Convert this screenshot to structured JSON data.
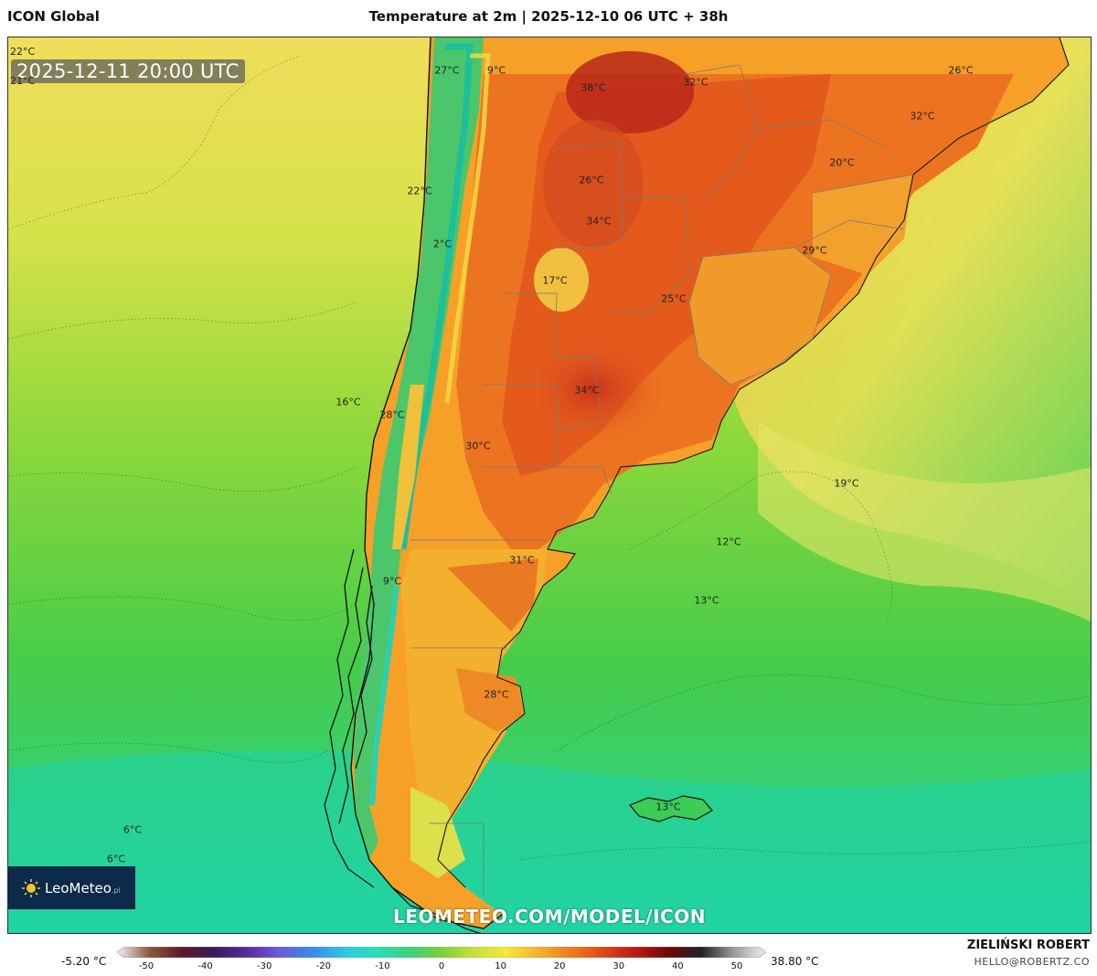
{
  "header": {
    "model": "ICON Global",
    "title": "Temperature at 2m | 2025-12-10 06 UTC + 38h"
  },
  "map": {
    "timestamp": "2025-12-11 20:00 UTC",
    "corner_labels": [
      "22°C",
      "21°C"
    ],
    "labels": [
      {
        "text": "27°C"
      },
      {
        "text": "9°C"
      },
      {
        "text": "38°C"
      },
      {
        "text": "32°C"
      },
      {
        "text": "26°C"
      },
      {
        "text": "32°C"
      },
      {
        "text": "26°C"
      },
      {
        "text": "20°C"
      },
      {
        "text": "22°C"
      },
      {
        "text": "34°C"
      },
      {
        "text": "2°C"
      },
      {
        "text": "29°C"
      },
      {
        "text": "17°C"
      },
      {
        "text": "25°C"
      },
      {
        "text": "16°C"
      },
      {
        "text": "34°C"
      },
      {
        "text": "28°C"
      },
      {
        "text": "30°C"
      },
      {
        "text": "19°C"
      },
      {
        "text": "12°C"
      },
      {
        "text": "31°C"
      },
      {
        "text": "9°C"
      },
      {
        "text": "13°C"
      },
      {
        "text": "28°C"
      },
      {
        "text": "13°C"
      },
      {
        "text": "6°C"
      },
      {
        "text": "6°C"
      }
    ],
    "watermark": "LEOMETEO.COM/MODEL/ICON",
    "logo": {
      "name": "LeoMeteo",
      "tld": ".pl",
      "icon": "sun-icon"
    }
  },
  "scale": {
    "min_label": "-5.20 °C",
    "max_label": "38.80 °C",
    "ticks": [
      "-50",
      "-40",
      "-30",
      "-20",
      "-10",
      "0",
      "10",
      "20",
      "30",
      "40",
      "50"
    ],
    "colors": [
      "#f4f4f4",
      "#8a5a3a",
      "#5a1a2a",
      "#3a1a5a",
      "#5a2aa0",
      "#6a5ae0",
      "#3a8ae8",
      "#2ac8e0",
      "#2ae0b8",
      "#3ad27a",
      "#7ad23a",
      "#c8e03a",
      "#f4e83a",
      "#f6b02a",
      "#f07a1e",
      "#e0461a",
      "#b81a12",
      "#6a0a0a",
      "#222222",
      "#9a9a9a",
      "#f0f0f0"
    ]
  },
  "credit": {
    "author": "ZIELIŃSKI ROBERT",
    "email": "HELLO@ROBERTZ.CO"
  }
}
